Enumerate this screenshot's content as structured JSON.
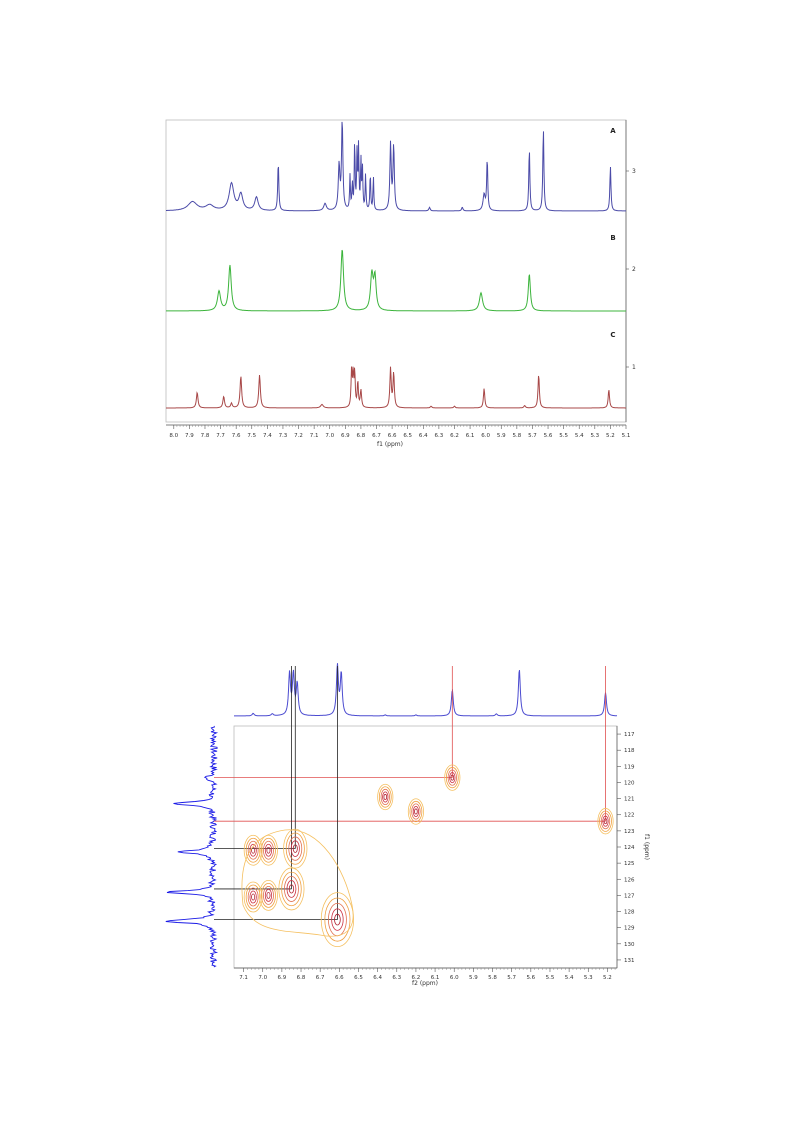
{
  "chart_data": [
    {
      "type": "line",
      "xlabel": "f1 (ppm)",
      "xlim": [
        8.05,
        5.1
      ],
      "x_ticks": [
        "8.0",
        "7.9",
        "7.8",
        "7.7",
        "7.6",
        "7.5",
        "7.4",
        "7.3",
        "7.2",
        "7.1",
        "7.0",
        "6.9",
        "6.8",
        "6.7",
        "6.6",
        "6.5",
        "6.4",
        "6.3",
        "6.2",
        "6.1",
        "6.0",
        "5.9",
        "5.8",
        "5.7",
        "5.6",
        "5.5",
        "5.4",
        "5.3",
        "5.2",
        "5.1"
      ],
      "y_ticks": [
        "3",
        "2",
        "1"
      ],
      "series": [
        {
          "name": "A",
          "color": "#4b4ba8",
          "peaks": [
            {
              "x": 7.88,
              "h": 0.1,
              "w": 0.035
            },
            {
              "x": 7.77,
              "h": 0.06,
              "w": 0.03
            },
            {
              "x": 7.63,
              "h": 0.3,
              "w": 0.018
            },
            {
              "x": 7.57,
              "h": 0.18,
              "w": 0.015
            },
            {
              "x": 7.47,
              "h": 0.15,
              "w": 0.013
            },
            {
              "x": 7.33,
              "h": 0.55,
              "w": 0.004
            },
            {
              "x": 7.03,
              "h": 0.08,
              "w": 0.01
            },
            {
              "x": 6.92,
              "h": 1.0,
              "w": 0.005
            },
            {
              "x": 6.94,
              "h": 0.5,
              "w": 0.006
            },
            {
              "x": 6.87,
              "h": 0.38,
              "w": 0.003
            },
            {
              "x": 6.855,
              "h": 0.3,
              "w": 0.003
            },
            {
              "x": 6.84,
              "h": 0.78,
              "w": 0.003
            },
            {
              "x": 6.825,
              "h": 0.62,
              "w": 0.003
            },
            {
              "x": 6.815,
              "h": 0.7,
              "w": 0.003
            },
            {
              "x": 6.8,
              "h": 0.55,
              "w": 0.003
            },
            {
              "x": 6.79,
              "h": 0.45,
              "w": 0.003
            },
            {
              "x": 6.77,
              "h": 0.4,
              "w": 0.003
            },
            {
              "x": 6.74,
              "h": 0.43,
              "w": 0.003
            },
            {
              "x": 6.72,
              "h": 0.38,
              "w": 0.003
            },
            {
              "x": 6.61,
              "h": 0.74,
              "w": 0.005
            },
            {
              "x": 6.59,
              "h": 0.72,
              "w": 0.005
            },
            {
              "x": 6.36,
              "h": 0.04,
              "w": 0.005
            },
            {
              "x": 6.15,
              "h": 0.04,
              "w": 0.005
            },
            {
              "x": 6.01,
              "h": 0.18,
              "w": 0.008
            },
            {
              "x": 5.99,
              "h": 0.58,
              "w": 0.004
            },
            {
              "x": 5.72,
              "h": 0.7,
              "w": 0.004
            },
            {
              "x": 5.63,
              "h": 0.93,
              "w": 0.004
            },
            {
              "x": 5.2,
              "h": 0.5,
              "w": 0.004
            }
          ]
        },
        {
          "name": "B",
          "color": "#3cb43c",
          "peaks": [
            {
              "x": 7.71,
              "h": 0.3,
              "w": 0.012
            },
            {
              "x": 7.64,
              "h": 0.7,
              "w": 0.01
            },
            {
              "x": 6.92,
              "h": 0.95,
              "w": 0.01
            },
            {
              "x": 6.73,
              "h": 0.55,
              "w": 0.01
            },
            {
              "x": 6.71,
              "h": 0.5,
              "w": 0.009
            },
            {
              "x": 6.03,
              "h": 0.28,
              "w": 0.012
            },
            {
              "x": 5.72,
              "h": 0.57,
              "w": 0.008
            }
          ]
        },
        {
          "name": "C",
          "color": "#a84848",
          "peaks": [
            {
              "x": 7.85,
              "h": 0.27,
              "w": 0.006
            },
            {
              "x": 7.68,
              "h": 0.2,
              "w": 0.006
            },
            {
              "x": 7.63,
              "h": 0.08,
              "w": 0.006
            },
            {
              "x": 7.57,
              "h": 0.55,
              "w": 0.006
            },
            {
              "x": 7.45,
              "h": 0.57,
              "w": 0.006
            },
            {
              "x": 7.05,
              "h": 0.06,
              "w": 0.01
            },
            {
              "x": 6.86,
              "h": 0.62,
              "w": 0.004
            },
            {
              "x": 6.85,
              "h": 0.55,
              "w": 0.004
            },
            {
              "x": 6.84,
              "h": 0.6,
              "w": 0.004
            },
            {
              "x": 6.82,
              "h": 0.45,
              "w": 0.004
            },
            {
              "x": 6.8,
              "h": 0.3,
              "w": 0.005
            },
            {
              "x": 6.61,
              "h": 0.68,
              "w": 0.005
            },
            {
              "x": 6.59,
              "h": 0.6,
              "w": 0.005
            },
            {
              "x": 6.35,
              "h": 0.03,
              "w": 0.006
            },
            {
              "x": 6.2,
              "h": 0.03,
              "w": 0.006
            },
            {
              "x": 6.01,
              "h": 0.34,
              "w": 0.005
            },
            {
              "x": 5.75,
              "h": 0.04,
              "w": 0.006
            },
            {
              "x": 5.66,
              "h": 0.58,
              "w": 0.005
            },
            {
              "x": 5.21,
              "h": 0.32,
              "w": 0.005
            }
          ]
        }
      ],
      "grid": false
    },
    {
      "type": "contour",
      "xlabel": "f2 (ppm)",
      "ylabel": "f1 (ppm)",
      "xlim": [
        7.15,
        5.15
      ],
      "ylim": [
        131.5,
        116.5
      ],
      "x_ticks": [
        "7.1",
        "7.0",
        "6.9",
        "6.8",
        "6.7",
        "6.6",
        "6.5",
        "6.4",
        "6.3",
        "6.2",
        "6.1",
        "6.0",
        "5.9",
        "5.8",
        "5.7",
        "5.6",
        "5.5",
        "5.4",
        "5.3",
        "5.2"
      ],
      "y_ticks": [
        "117",
        "118",
        "119",
        "120",
        "121",
        "122",
        "123",
        "124",
        "125",
        "126",
        "127",
        "128",
        "129",
        "130",
        "131"
      ],
      "cross_peaks": [
        {
          "x": 6.01,
          "y": 119.7,
          "group": "red-link"
        },
        {
          "x": 6.36,
          "y": 120.9,
          "group": "plain"
        },
        {
          "x": 6.2,
          "y": 121.8,
          "group": "plain"
        },
        {
          "x": 5.21,
          "y": 122.4,
          "group": "red-link"
        },
        {
          "x": 6.83,
          "y": 124.1,
          "group": "black-link"
        },
        {
          "x": 6.85,
          "y": 126.6,
          "group": "black-link"
        },
        {
          "x": 6.61,
          "y": 128.5,
          "group": "black-link"
        },
        {
          "x": 7.05,
          "y": 124.2,
          "group": "plain"
        },
        {
          "x": 6.97,
          "y": 124.2,
          "group": "plain"
        },
        {
          "x": 7.05,
          "y": 127.1,
          "group": "plain"
        },
        {
          "x": 6.97,
          "y": 127.0,
          "group": "plain"
        }
      ],
      "projection_f2_peaks": [
        {
          "x": 7.05,
          "h": 0.05
        },
        {
          "x": 6.95,
          "h": 0.04
        },
        {
          "x": 6.86,
          "h": 0.8
        },
        {
          "x": 6.84,
          "h": 0.78
        },
        {
          "x": 6.82,
          "h": 0.6
        },
        {
          "x": 6.61,
          "h": 0.95
        },
        {
          "x": 6.59,
          "h": 0.8
        },
        {
          "x": 6.36,
          "h": 0.02
        },
        {
          "x": 6.2,
          "h": 0.02
        },
        {
          "x": 6.01,
          "h": 0.5
        },
        {
          "x": 5.78,
          "h": 0.04
        },
        {
          "x": 5.66,
          "h": 0.9
        },
        {
          "x": 5.21,
          "h": 0.45
        }
      ],
      "projection_f1_peaks": [
        {
          "y": 119.7,
          "h": 0.15
        },
        {
          "y": 121.3,
          "h": 0.85
        },
        {
          "y": 124.3,
          "h": 0.7
        },
        {
          "y": 126.8,
          "h": 1.0
        },
        {
          "y": 128.6,
          "h": 1.0
        }
      ],
      "link_colors": {
        "red-link": "#e05050",
        "black-link": "#222222"
      }
    }
  ]
}
